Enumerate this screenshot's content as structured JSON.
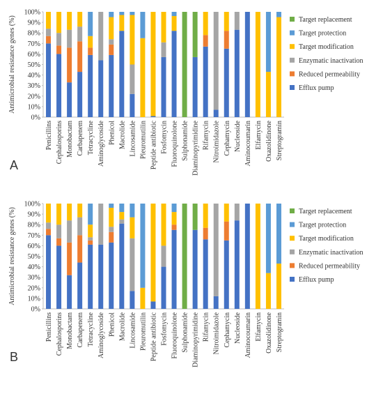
{
  "chart_data": [
    {
      "type": "stacked_bar",
      "panel_label": "A",
      "y_label": "Antimicrobial resistance genes (%)",
      "categories": [
        "Penicillins",
        "Cephalosporins",
        "Monobactam",
        "Carbapenem",
        "Tetracycline",
        "Aminoglycoside",
        "Phenicol",
        "Macrolide",
        "Lincosamide",
        "Pleuromutilin",
        "Peptide antibiotic",
        "Fosfomycin",
        "Fluoroquinolone",
        "Sulphonamide",
        "Diaminopyrimidine",
        "Rifamycin",
        "Nitroimidazole",
        "Cephamycin",
        "Nucleoside",
        "Aminocoumarin",
        "Elfamycin",
        "Oxazolidinone",
        "Streptogramin"
      ],
      "series": [
        {
          "name": "Efflux pump",
          "color": "#4472c4",
          "values": [
            70,
            60,
            33,
            43,
            59,
            54,
            59,
            82,
            22,
            0,
            1,
            57,
            82,
            0,
            57,
            67,
            7,
            65,
            83,
            100,
            0,
            0,
            0
          ]
        },
        {
          "name": "Reduced permeability",
          "color": "#ed7d31",
          "values": [
            7,
            8,
            33,
            29,
            7,
            0,
            10,
            0,
            0,
            0,
            0,
            0,
            0,
            0,
            0,
            11,
            0,
            17,
            0,
            0,
            0,
            0,
            0
          ]
        },
        {
          "name": "Enzymatic inactivation",
          "color": "#a5a5a5",
          "values": [
            7,
            12,
            17,
            14,
            0,
            46,
            5,
            0,
            28,
            0,
            0,
            14,
            0,
            0,
            0,
            0,
            93,
            0,
            17,
            0,
            0,
            0,
            0
          ]
        },
        {
          "name": "Target modification",
          "color": "#ffc000",
          "values": [
            16,
            20,
            17,
            14,
            11,
            0,
            21,
            15,
            47,
            75,
            99,
            29,
            14,
            0,
            0,
            22,
            0,
            18,
            0,
            0,
            100,
            43,
            95
          ]
        },
        {
          "name": "Target protection",
          "color": "#5b9bd5",
          "values": [
            0,
            0,
            0,
            0,
            23,
            0,
            5,
            3,
            3,
            25,
            0,
            0,
            4,
            0,
            0,
            0,
            0,
            0,
            0,
            0,
            0,
            57,
            5
          ]
        },
        {
          "name": "Target replacement",
          "color": "#70ad47",
          "values": [
            0,
            0,
            0,
            0,
            0,
            0,
            0,
            0,
            0,
            0,
            0,
            0,
            0,
            100,
            43,
            0,
            0,
            0,
            0,
            0,
            0,
            0,
            0
          ]
        }
      ],
      "ylim": [
        0,
        100
      ],
      "yticks": [
        {
          "value": 0,
          "label": "0%"
        },
        {
          "value": 10,
          "label": "10%"
        },
        {
          "value": 20,
          "label": "20%"
        },
        {
          "value": 30,
          "label": "30%"
        },
        {
          "value": 40,
          "label": "40%"
        },
        {
          "value": 50,
          "label": "50%"
        },
        {
          "value": 60,
          "label": "60%"
        },
        {
          "value": 70,
          "label": "70%"
        },
        {
          "value": 80,
          "label": "80%"
        },
        {
          "value": 90,
          "label": "90%"
        },
        {
          "value": 100,
          "label": "100%"
        }
      ]
    },
    {
      "type": "stacked_bar",
      "panel_label": "B",
      "y_label": "Antimicrobial resistance genes (%)",
      "categories": [
        "Penicillins",
        "Cephalosporins",
        "Monobactam",
        "Carbapenem",
        "Tetracycline",
        "Aminoglycoside",
        "Phenicol",
        "Macrolide",
        "Lincosamide",
        "Pleuromutilin",
        "Peptide antibiotic",
        "Fosfomycin",
        "Fluoroquinolone",
        "Sulphonamide",
        "Diaminopyrimidine",
        "Rifamycin",
        "Nitroimidazole",
        "Cephamycin",
        "Nucleoside",
        "Aminocoumarin",
        "Elfamycin",
        "Oxazolidinone",
        "Streptogramin"
      ],
      "series": [
        {
          "name": "Efflux pump",
          "color": "#4472c4",
          "values": [
            70,
            60,
            32,
            44,
            61,
            61,
            63,
            81,
            17,
            0,
            7,
            40,
            75,
            0,
            75,
            66,
            12,
            65,
            84,
            100,
            0,
            0,
            0
          ]
        },
        {
          "name": "Reduced permeability",
          "color": "#ed7d31",
          "values": [
            6,
            7,
            31,
            26,
            4,
            0,
            10,
            0,
            0,
            0,
            0,
            0,
            5,
            0,
            0,
            11,
            0,
            18,
            0,
            0,
            0,
            0,
            0
          ]
        },
        {
          "name": "Enzymatic inactivation",
          "color": "#a5a5a5",
          "values": [
            6,
            13,
            21,
            17,
            3,
            39,
            5,
            4,
            50,
            0,
            0,
            20,
            0,
            0,
            0,
            0,
            88,
            0,
            16,
            0,
            0,
            0,
            0
          ]
        },
        {
          "name": "Target modification",
          "color": "#ffc000",
          "values": [
            18,
            20,
            16,
            13,
            12,
            0,
            18,
            7,
            20,
            20,
            93,
            40,
            12,
            0,
            0,
            23,
            0,
            17,
            0,
            0,
            100,
            34,
            43
          ]
        },
        {
          "name": "Target protection",
          "color": "#5b9bd5",
          "values": [
            0,
            0,
            0,
            0,
            20,
            0,
            4,
            8,
            13,
            80,
            0,
            0,
            8,
            0,
            0,
            0,
            0,
            0,
            0,
            0,
            0,
            66,
            57
          ]
        },
        {
          "name": "Target replacement",
          "color": "#70ad47",
          "values": [
            0,
            0,
            0,
            0,
            0,
            0,
            0,
            0,
            0,
            0,
            0,
            0,
            0,
            100,
            25,
            0,
            0,
            0,
            0,
            0,
            0,
            0,
            0
          ]
        }
      ],
      "ylim": [
        0,
        100
      ],
      "yticks": [
        {
          "value": 0,
          "label": "0%"
        },
        {
          "value": 10,
          "label": "10%"
        },
        {
          "value": 20,
          "label": "20%"
        },
        {
          "value": 30,
          "label": "30%"
        },
        {
          "value": 40,
          "label": "40%"
        },
        {
          "value": 50,
          "label": "50%"
        },
        {
          "value": 60,
          "label": "60%"
        },
        {
          "value": 70,
          "label": "70%"
        },
        {
          "value": 80,
          "label": "80%"
        },
        {
          "value": 90,
          "label": "90%"
        },
        {
          "value": 100,
          "label": "100%"
        }
      ]
    }
  ]
}
